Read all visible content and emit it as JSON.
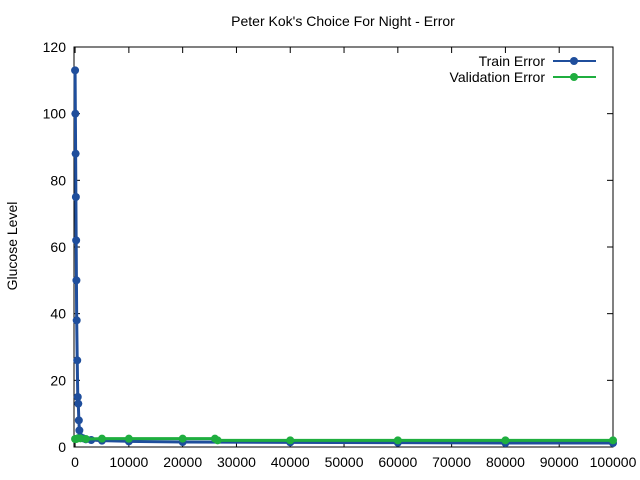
{
  "chart_data": {
    "type": "line",
    "title": "Peter Kok's Choice For Night - Error",
    "xlabel": "",
    "ylabel": "Glucose Level",
    "xlim": [
      -200,
      100000
    ],
    "ylim": [
      0,
      120
    ],
    "xticks": [
      0,
      10000,
      20000,
      30000,
      40000,
      50000,
      60000,
      70000,
      80000,
      90000,
      100000
    ],
    "yticks": [
      0,
      20,
      40,
      60,
      80,
      100,
      120
    ],
    "legend_position": "top-right",
    "grid": false,
    "series": [
      {
        "name": "Train Error",
        "color": "#1f4e9c",
        "x": [
          0,
          50,
          100,
          150,
          200,
          250,
          300,
          400,
          500,
          600,
          700,
          800,
          1000,
          1500,
          2000,
          3000,
          5000,
          10000,
          20000,
          40000,
          60000,
          80000,
          100000
        ],
        "y": [
          113,
          100,
          88,
          75,
          62,
          50,
          38,
          26,
          15,
          13,
          8,
          5,
          3,
          2.6,
          2.3,
          2.1,
          1.9,
          1.7,
          1.5,
          1.4,
          1.3,
          1.2,
          1.2
        ]
      },
      {
        "name": "Validation Error",
        "color": "#1fae3f",
        "x": [
          0,
          200,
          500,
          1000,
          2000,
          5000,
          10000,
          20000,
          26000,
          26500,
          40000,
          60000,
          80000,
          100000
        ],
        "y": [
          2.4,
          2.4,
          2.6,
          2.6,
          2.4,
          2.5,
          2.5,
          2.5,
          2.5,
          2.0,
          2.0,
          2.0,
          2.0,
          2.0
        ]
      }
    ]
  }
}
